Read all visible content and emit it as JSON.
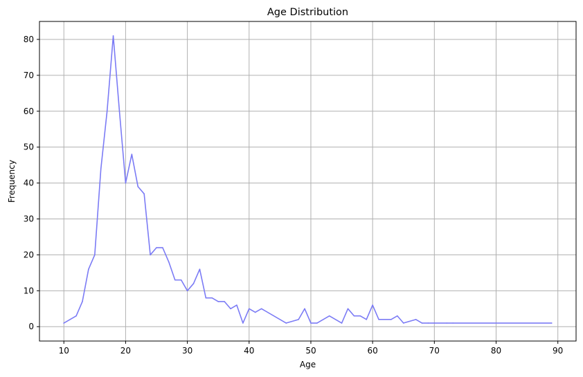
{
  "chart_data": {
    "type": "line",
    "title": "Age Distribution",
    "xlabel": "Age",
    "ylabel": "Frequency",
    "xlim": [
      6.05,
      92.95
    ],
    "ylim": [
      -4.0,
      85.0
    ],
    "xticks": [
      10,
      20,
      30,
      40,
      50,
      60,
      70,
      80,
      90
    ],
    "yticks": [
      0,
      10,
      20,
      30,
      40,
      50,
      60,
      70,
      80
    ],
    "grid": true,
    "legend": "none",
    "series": [
      {
        "color": "#7b7bf5",
        "x": [
          10,
          12,
          13,
          14,
          15,
          16,
          17,
          18,
          19,
          20,
          21,
          22,
          23,
          24,
          25,
          26,
          27,
          28,
          29,
          30,
          31,
          32,
          33,
          34,
          35,
          36,
          37,
          38,
          39,
          40,
          41,
          42,
          46,
          48,
          49,
          50,
          51,
          53,
          55,
          56,
          57,
          58,
          59,
          60,
          61,
          63,
          64,
          65,
          67,
          68,
          69,
          70,
          72,
          73,
          89
        ],
        "y": [
          1,
          3,
          7,
          16,
          20,
          44,
          60,
          81,
          60,
          40,
          48,
          39,
          37,
          20,
          22,
          22,
          18,
          13,
          13,
          10,
          12,
          16,
          8,
          8,
          7,
          7,
          5,
          6,
          1,
          5,
          4,
          5,
          1,
          2,
          5,
          1,
          1,
          3,
          1,
          5,
          3,
          3,
          2,
          6,
          2,
          2,
          3,
          1,
          2,
          1,
          1,
          1,
          1,
          1,
          1
        ]
      }
    ]
  }
}
